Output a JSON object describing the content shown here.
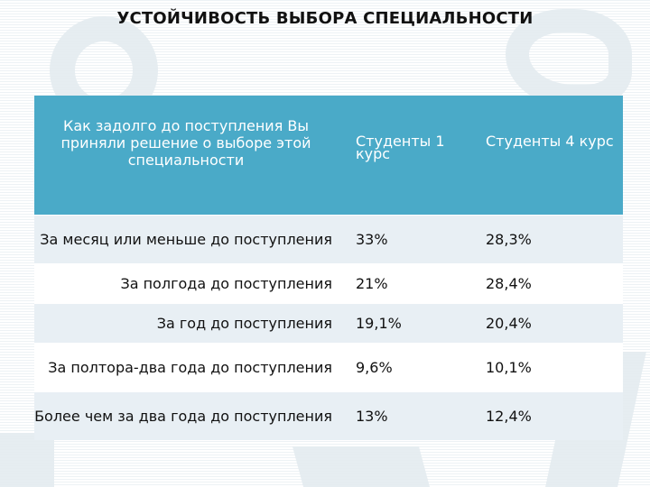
{
  "title": "УСТОЙЧИВОСТЬ ВЫБОРА СПЕЦИАЛЬНОСТИ",
  "table": {
    "headers": [
      "Как задолго до поступления Вы приняли решение о выборе этой специальности",
      "Студенты 1 курс",
      "Студенты 4 курс"
    ],
    "rows": [
      {
        "label": "За месяц или меньше до поступления",
        "y1": "33%",
        "y4": "28,3%"
      },
      {
        "label": "За полгода до поступления",
        "y1": "21%",
        "y4": "28,4%"
      },
      {
        "label": "За год до поступления",
        "y1": "19,1%",
        "y4": "20,4%"
      },
      {
        "label": "За полтора-два года до поступления",
        "y1": "9,6%",
        "y4": "10,1%"
      },
      {
        "label": "Более чем за два года до поступления",
        "y1": "13%",
        "y4": "12,4%"
      }
    ]
  },
  "colors": {
    "header_bg": "#4aaac8",
    "row_alt_bg": "#e8eff4",
    "row_bg": "#ffffff"
  }
}
